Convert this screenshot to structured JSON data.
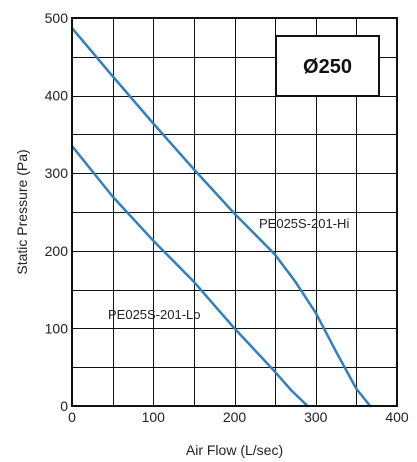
{
  "chart_data": {
    "type": "line",
    "title": "",
    "badge": "Ø250",
    "xlabel": "Air Flow (L/sec)",
    "ylabel": "Static Pressure (Pa)",
    "xlim": [
      0,
      400
    ],
    "ylim": [
      0,
      500
    ],
    "xticks": [
      0,
      100,
      200,
      300,
      400
    ],
    "yticks": [
      0,
      100,
      200,
      300,
      400,
      500
    ],
    "x_grid_step": 50,
    "y_grid_step": 50,
    "grid": true,
    "series": [
      {
        "name": "PE025S-201-Hi",
        "color": "#2f7fc1",
        "points": [
          [
            0,
            487
          ],
          [
            50,
            425
          ],
          [
            100,
            364
          ],
          [
            150,
            305
          ],
          [
            200,
            248
          ],
          [
            250,
            195
          ],
          [
            275,
            160
          ],
          [
            300,
            120
          ],
          [
            325,
            70
          ],
          [
            350,
            22
          ],
          [
            367,
            0
          ]
        ]
      },
      {
        "name": "PE025S-201-Lo",
        "color": "#2f7fc1",
        "points": [
          [
            0,
            335
          ],
          [
            50,
            270
          ],
          [
            100,
            213
          ],
          [
            150,
            160
          ],
          [
            200,
            100
          ],
          [
            250,
            44
          ],
          [
            270,
            20
          ],
          [
            290,
            0
          ]
        ]
      }
    ]
  }
}
